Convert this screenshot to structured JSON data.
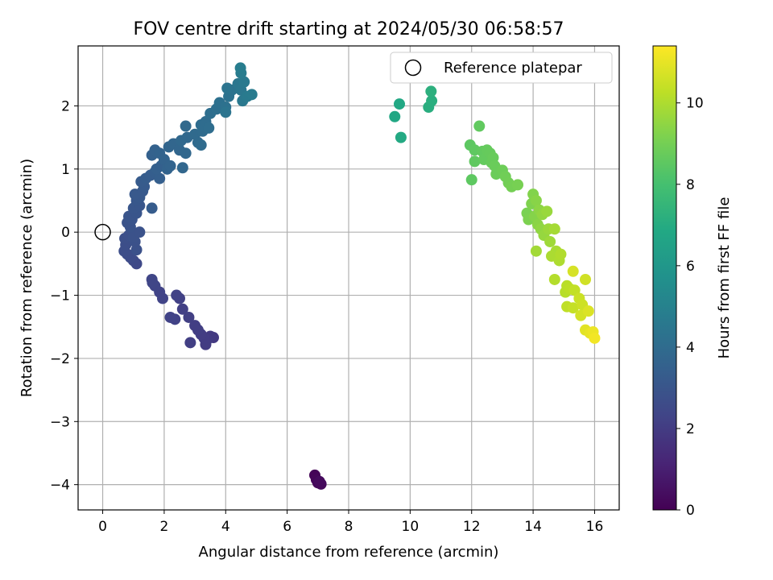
{
  "chart_data": {
    "type": "scatter",
    "title": "FOV centre drift starting at 2024/05/30 06:58:57",
    "xlabel": "Angular distance from reference (arcmin)",
    "ylabel": "Rotation from reference (arcmin)",
    "xlim": [
      -0.8,
      16.8
    ],
    "ylim": [
      -4.4,
      2.95
    ],
    "xticks": [
      0,
      2,
      4,
      6,
      8,
      10,
      12,
      14,
      16
    ],
    "yticks": [
      -4,
      -3,
      -2,
      -1,
      0,
      1,
      2
    ],
    "grid": true,
    "legend": {
      "position": "top-right",
      "label": "Reference platepar"
    },
    "reference_point": {
      "x": 0,
      "y": 0
    },
    "colorbar": {
      "label": "Hours from first FF file",
      "colormap": "viridis",
      "range": [
        0,
        11.4
      ],
      "ticks": [
        0,
        2,
        4,
        6,
        8,
        10
      ]
    },
    "series": [
      {
        "points": [
          {
            "x": 6.9,
            "y": -3.85,
            "c": 0.1
          },
          {
            "x": 6.95,
            "y": -3.92,
            "c": 0.15
          },
          {
            "x": 7.0,
            "y": -3.97,
            "c": 0.2
          },
          {
            "x": 7.1,
            "y": -3.99,
            "c": 0.25
          },
          {
            "x": 7.05,
            "y": -3.95,
            "c": 0.3
          },
          {
            "x": 3.6,
            "y": -1.67,
            "c": 1.9
          },
          {
            "x": 3.5,
            "y": -1.65,
            "c": 1.92
          },
          {
            "x": 3.4,
            "y": -1.7,
            "c": 1.95
          },
          {
            "x": 3.35,
            "y": -1.78,
            "c": 1.98
          },
          {
            "x": 3.3,
            "y": -1.68,
            "c": 2.0
          },
          {
            "x": 3.2,
            "y": -1.62,
            "c": 2.02
          },
          {
            "x": 3.1,
            "y": -1.55,
            "c": 2.05
          },
          {
            "x": 3.0,
            "y": -1.48,
            "c": 2.08
          },
          {
            "x": 2.85,
            "y": -1.75,
            "c": 2.1
          },
          {
            "x": 2.8,
            "y": -1.35,
            "c": 2.12
          },
          {
            "x": 2.6,
            "y": -1.22,
            "c": 2.15
          },
          {
            "x": 2.5,
            "y": -1.05,
            "c": 2.18
          },
          {
            "x": 2.4,
            "y": -1.0,
            "c": 2.2
          },
          {
            "x": 2.35,
            "y": -1.38,
            "c": 2.22
          },
          {
            "x": 2.2,
            "y": -1.35,
            "c": 2.25
          },
          {
            "x": 1.95,
            "y": -1.05,
            "c": 2.28
          },
          {
            "x": 1.85,
            "y": -0.95,
            "c": 2.3
          },
          {
            "x": 1.7,
            "y": -0.85,
            "c": 2.33
          },
          {
            "x": 1.6,
            "y": -0.75,
            "c": 2.35
          },
          {
            "x": 1.62,
            "y": -0.8,
            "c": 2.36
          },
          {
            "x": 1.1,
            "y": -0.5,
            "c": 2.5
          },
          {
            "x": 1.0,
            "y": -0.45,
            "c": 2.55
          },
          {
            "x": 0.9,
            "y": -0.4,
            "c": 2.6
          },
          {
            "x": 0.8,
            "y": -0.35,
            "c": 2.65
          },
          {
            "x": 0.7,
            "y": -0.3,
            "c": 2.7
          },
          {
            "x": 0.75,
            "y": -0.2,
            "c": 2.72
          },
          {
            "x": 0.72,
            "y": -0.1,
            "c": 2.75
          },
          {
            "x": 0.85,
            "y": -0.05,
            "c": 2.78
          },
          {
            "x": 0.95,
            "y": 0.0,
            "c": 2.8
          },
          {
            "x": 1.1,
            "y": -0.28,
            "c": 2.82
          },
          {
            "x": 1.05,
            "y": -0.15,
            "c": 2.84
          },
          {
            "x": 1.0,
            "y": -0.08,
            "c": 2.86
          },
          {
            "x": 1.2,
            "y": 0.0,
            "c": 2.88
          },
          {
            "x": 0.9,
            "y": 0.08,
            "c": 2.9
          },
          {
            "x": 0.8,
            "y": 0.15,
            "c": 2.92
          },
          {
            "x": 0.95,
            "y": 0.2,
            "c": 2.95
          },
          {
            "x": 0.85,
            "y": 0.25,
            "c": 2.98
          },
          {
            "x": 1.1,
            "y": 0.3,
            "c": 3.0
          },
          {
            "x": 1.0,
            "y": 0.38,
            "c": 3.02
          },
          {
            "x": 1.2,
            "y": 0.42,
            "c": 3.05
          },
          {
            "x": 1.1,
            "y": 0.5,
            "c": 3.1
          },
          {
            "x": 1.2,
            "y": 0.55,
            "c": 3.12
          },
          {
            "x": 1.05,
            "y": 0.6,
            "c": 3.15
          },
          {
            "x": 1.3,
            "y": 0.65,
            "c": 3.18
          },
          {
            "x": 1.35,
            "y": 0.72,
            "c": 3.2
          },
          {
            "x": 1.25,
            "y": 0.8,
            "c": 3.25
          },
          {
            "x": 1.4,
            "y": 0.85,
            "c": 3.28
          },
          {
            "x": 1.6,
            "y": 0.38,
            "c": 3.3
          },
          {
            "x": 1.55,
            "y": 0.9,
            "c": 3.35
          },
          {
            "x": 1.7,
            "y": 0.95,
            "c": 3.38
          },
          {
            "x": 1.85,
            "y": 0.85,
            "c": 3.4
          },
          {
            "x": 1.75,
            "y": 1.0,
            "c": 3.45
          },
          {
            "x": 1.9,
            "y": 1.05,
            "c": 3.48
          },
          {
            "x": 1.6,
            "y": 1.22,
            "c": 3.5
          },
          {
            "x": 1.7,
            "y": 1.3,
            "c": 3.55
          },
          {
            "x": 1.85,
            "y": 1.25,
            "c": 3.58
          },
          {
            "x": 2.0,
            "y": 1.15,
            "c": 3.6
          },
          {
            "x": 2.1,
            "y": 1.0,
            "c": 3.62
          },
          {
            "x": 2.2,
            "y": 1.05,
            "c": 3.65
          },
          {
            "x": 2.15,
            "y": 1.35,
            "c": 3.7
          },
          {
            "x": 2.3,
            "y": 1.4,
            "c": 3.72
          },
          {
            "x": 2.5,
            "y": 1.3,
            "c": 3.75
          },
          {
            "x": 2.6,
            "y": 1.02,
            "c": 3.78
          },
          {
            "x": 2.7,
            "y": 1.25,
            "c": 3.8
          },
          {
            "x": 2.55,
            "y": 1.45,
            "c": 3.82
          },
          {
            "x": 2.75,
            "y": 1.5,
            "c": 3.85
          },
          {
            "x": 2.7,
            "y": 1.68,
            "c": 3.88
          },
          {
            "x": 3.0,
            "y": 1.55,
            "c": 3.9
          },
          {
            "x": 3.1,
            "y": 1.42,
            "c": 3.92
          },
          {
            "x": 3.2,
            "y": 1.38,
            "c": 3.95
          },
          {
            "x": 3.25,
            "y": 1.6,
            "c": 3.98
          },
          {
            "x": 3.2,
            "y": 1.7,
            "c": 4.0
          },
          {
            "x": 3.35,
            "y": 1.75,
            "c": 4.02
          },
          {
            "x": 3.45,
            "y": 1.65,
            "c": 4.05
          },
          {
            "x": 3.5,
            "y": 1.88,
            "c": 4.1
          },
          {
            "x": 3.7,
            "y": 1.95,
            "c": 4.15
          },
          {
            "x": 3.8,
            "y": 2.05,
            "c": 4.2
          },
          {
            "x": 4.0,
            "y": 1.98,
            "c": 4.25
          },
          {
            "x": 4.1,
            "y": 2.15,
            "c": 4.3
          },
          {
            "x": 4.2,
            "y": 2.25,
            "c": 4.35
          },
          {
            "x": 4.05,
            "y": 2.28,
            "c": 4.38
          },
          {
            "x": 4.0,
            "y": 1.9,
            "c": 4.4
          },
          {
            "x": 4.4,
            "y": 2.35,
            "c": 4.45
          },
          {
            "x": 4.5,
            "y": 2.25,
            "c": 4.5
          },
          {
            "x": 4.55,
            "y": 2.08,
            "c": 4.55
          },
          {
            "x": 4.6,
            "y": 2.38,
            "c": 4.6
          },
          {
            "x": 4.7,
            "y": 2.15,
            "c": 4.65
          },
          {
            "x": 4.85,
            "y": 2.18,
            "c": 4.7
          },
          {
            "x": 4.5,
            "y": 2.52,
            "c": 4.75
          },
          {
            "x": 4.48,
            "y": 2.6,
            "c": 4.8
          },
          {
            "x": 9.5,
            "y": 1.83,
            "c": 6.8
          },
          {
            "x": 9.65,
            "y": 2.03,
            "c": 6.85
          },
          {
            "x": 9.7,
            "y": 1.5,
            "c": 6.9
          },
          {
            "x": 10.6,
            "y": 1.98,
            "c": 7.1
          },
          {
            "x": 10.7,
            "y": 2.08,
            "c": 7.15
          },
          {
            "x": 10.68,
            "y": 2.23,
            "c": 7.2
          },
          {
            "x": 11.95,
            "y": 1.38,
            "c": 8.5
          },
          {
            "x": 12.0,
            "y": 0.83,
            "c": 8.52
          },
          {
            "x": 12.1,
            "y": 1.3,
            "c": 8.55
          },
          {
            "x": 12.1,
            "y": 1.12,
            "c": 8.58
          },
          {
            "x": 12.25,
            "y": 1.68,
            "c": 8.6
          },
          {
            "x": 12.35,
            "y": 1.28,
            "c": 8.62
          },
          {
            "x": 12.4,
            "y": 1.15,
            "c": 8.65
          },
          {
            "x": 12.5,
            "y": 1.3,
            "c": 8.68
          },
          {
            "x": 12.6,
            "y": 1.25,
            "c": 8.7
          },
          {
            "x": 12.65,
            "y": 1.1,
            "c": 8.72
          },
          {
            "x": 12.7,
            "y": 1.18,
            "c": 8.75
          },
          {
            "x": 12.75,
            "y": 1.05,
            "c": 8.78
          },
          {
            "x": 12.8,
            "y": 0.92,
            "c": 8.8
          },
          {
            "x": 13.0,
            "y": 0.98,
            "c": 8.85
          },
          {
            "x": 13.1,
            "y": 0.88,
            "c": 8.9
          },
          {
            "x": 13.2,
            "y": 0.78,
            "c": 8.95
          },
          {
            "x": 13.3,
            "y": 0.72,
            "c": 9.0
          },
          {
            "x": 13.5,
            "y": 0.75,
            "c": 9.05
          },
          {
            "x": 13.8,
            "y": 0.3,
            "c": 9.1
          },
          {
            "x": 13.85,
            "y": 0.2,
            "c": 9.15
          },
          {
            "x": 13.95,
            "y": 0.45,
            "c": 9.2
          },
          {
            "x": 14.0,
            "y": 0.6,
            "c": 9.25
          },
          {
            "x": 14.05,
            "y": 0.25,
            "c": 9.3
          },
          {
            "x": 14.1,
            "y": 0.5,
            "c": 9.35
          },
          {
            "x": 14.15,
            "y": 0.12,
            "c": 9.4
          },
          {
            "x": 14.2,
            "y": 0.35,
            "c": 9.45
          },
          {
            "x": 14.25,
            "y": 0.05,
            "c": 9.5
          },
          {
            "x": 14.3,
            "y": 0.28,
            "c": 9.55
          },
          {
            "x": 14.35,
            "y": -0.05,
            "c": 9.6
          },
          {
            "x": 14.45,
            "y": 0.33,
            "c": 9.65
          },
          {
            "x": 14.5,
            "y": 0.05,
            "c": 9.7
          },
          {
            "x": 14.55,
            "y": -0.15,
            "c": 9.75
          },
          {
            "x": 14.1,
            "y": -0.3,
            "c": 9.8
          },
          {
            "x": 14.7,
            "y": 0.05,
            "c": 9.85
          },
          {
            "x": 14.75,
            "y": -0.3,
            "c": 9.9
          },
          {
            "x": 14.6,
            "y": -0.38,
            "c": 9.95
          },
          {
            "x": 14.85,
            "y": -0.45,
            "c": 10.0
          },
          {
            "x": 14.9,
            "y": -0.35,
            "c": 10.05
          },
          {
            "x": 14.7,
            "y": -0.75,
            "c": 10.1
          },
          {
            "x": 15.05,
            "y": -0.95,
            "c": 10.15
          },
          {
            "x": 15.1,
            "y": -0.85,
            "c": 10.2
          },
          {
            "x": 15.2,
            "y": -0.9,
            "c": 10.25
          },
          {
            "x": 15.1,
            "y": -1.18,
            "c": 10.3
          },
          {
            "x": 15.35,
            "y": -0.92,
            "c": 10.35
          },
          {
            "x": 15.3,
            "y": -1.2,
            "c": 10.4
          },
          {
            "x": 15.5,
            "y": -1.05,
            "c": 10.5
          },
          {
            "x": 15.6,
            "y": -1.15,
            "c": 10.55
          },
          {
            "x": 15.7,
            "y": -0.75,
            "c": 10.6
          },
          {
            "x": 15.55,
            "y": -1.32,
            "c": 10.65
          },
          {
            "x": 15.3,
            "y": -0.62,
            "c": 10.7
          },
          {
            "x": 15.8,
            "y": -1.25,
            "c": 10.8
          },
          {
            "x": 15.7,
            "y": -1.55,
            "c": 10.9
          },
          {
            "x": 15.85,
            "y": -1.6,
            "c": 11.0
          },
          {
            "x": 15.95,
            "y": -1.58,
            "c": 11.1
          },
          {
            "x": 16.0,
            "y": -1.68,
            "c": 11.2
          }
        ]
      }
    ]
  }
}
